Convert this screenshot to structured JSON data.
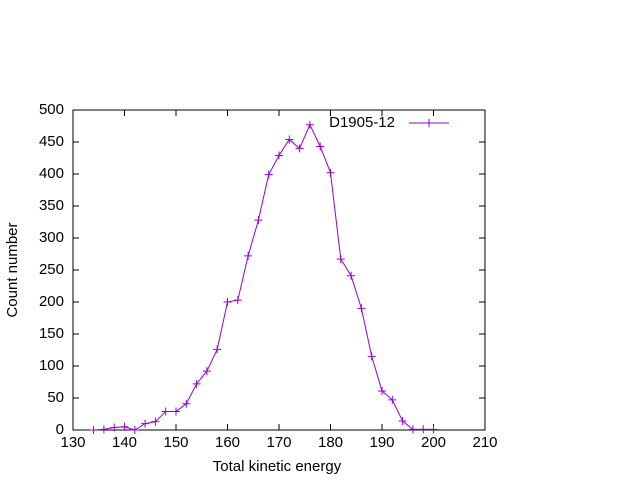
{
  "chart_data": {
    "type": "line",
    "xlabel": "Total kinetic energy",
    "ylabel": "Count number",
    "x": [
      134,
      136,
      138,
      140,
      142,
      144,
      146,
      148,
      150,
      152,
      154,
      156,
      158,
      160,
      162,
      164,
      166,
      168,
      170,
      172,
      174,
      176,
      178,
      180,
      182,
      184,
      186,
      188,
      190,
      192,
      194,
      196,
      198,
      200
    ],
    "series": [
      {
        "name": "D1905-12",
        "color": "#9400d3",
        "values": [
          0,
          1,
          4,
          5,
          0,
          10,
          13,
          29,
          29,
          41,
          72,
          92,
          126,
          200,
          203,
          272,
          328,
          399,
          429,
          454,
          440,
          477,
          443,
          402,
          267,
          241,
          190,
          115,
          61,
          47,
          14,
          1,
          1,
          1
        ]
      }
    ],
    "xlim": [
      130,
      210
    ],
    "xticks": [
      130,
      140,
      150,
      160,
      170,
      180,
      190,
      200,
      210
    ],
    "ylim": [
      0,
      500
    ],
    "yticks": [
      0,
      50,
      100,
      150,
      200,
      250,
      300,
      350,
      400,
      450,
      500
    ],
    "legend": "top right"
  }
}
